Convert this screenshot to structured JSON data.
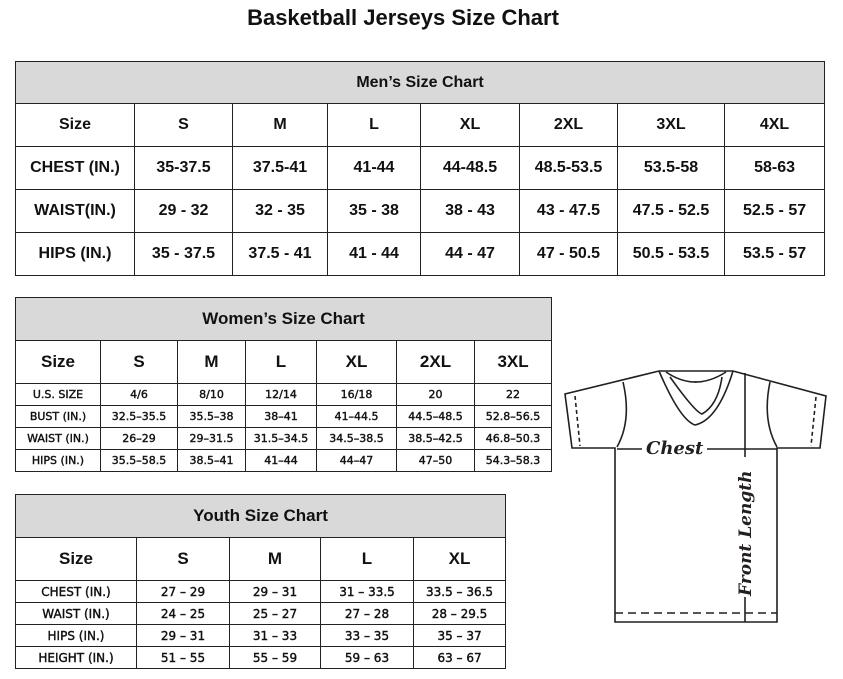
{
  "title": "Basketball Jerseys Size Chart",
  "men": {
    "title": "Men’s Size Chart",
    "header": [
      "Size",
      "S",
      "M",
      "L",
      "XL",
      "2XL",
      "3XL",
      "4XL"
    ],
    "rows": [
      [
        "CHEST (IN.)",
        "35-37.5",
        "37.5-41",
        "41-44",
        "44-48.5",
        "48.5-53.5",
        "53.5-58",
        "58-63"
      ],
      [
        "WAIST(IN.)",
        "29 - 32",
        "32 - 35",
        "35 - 38",
        "38 - 43",
        "43 - 47.5",
        "47.5 - 52.5",
        "52.5 - 57"
      ],
      [
        "HIPS (IN.)",
        "35 - 37.5",
        "37.5 - 41",
        "41 - 44",
        "44 - 47",
        "47 - 50.5",
        "50.5 - 53.5",
        "53.5 - 57"
      ]
    ]
  },
  "women": {
    "title": "Women’s Size Chart",
    "header": [
      "Size",
      "S",
      "M",
      "L",
      "XL",
      "2XL",
      "3XL"
    ],
    "rows": [
      [
        "U.S.  SIZE",
        "4/6",
        "8/10",
        "12/14",
        "16/18",
        "20",
        "22"
      ],
      [
        "BUST  (IN.)",
        "32.5–35.5",
        "35.5–38",
        "38–41",
        "41–44.5",
        "44.5–48.5",
        "52.8–56.5"
      ],
      [
        "WAIST  (IN.)",
        "26–29",
        "29–31.5",
        "31.5–34.5",
        "34.5–38.5",
        "38.5–42.5",
        "46.8–50.3"
      ],
      [
        "HIPS  (IN.)",
        "35.5–58.5",
        "38.5–41",
        "41–44",
        "44–47",
        "47–50",
        "54.3–58.3"
      ]
    ]
  },
  "youth": {
    "title": "Youth Size Chart",
    "header": [
      "Size",
      "S",
      "M",
      "L",
      "XL"
    ],
    "rows": [
      [
        "CHEST  (IN.)",
        "27  –  29",
        "29  –  31",
        "31  –  33.5",
        "33.5  –  36.5"
      ],
      [
        "WAIST  (IN.)",
        "24  –  25",
        "25  –  27",
        "27  –  28",
        "28  –  29.5"
      ],
      [
        "HIPS  (IN.)",
        "29  –  31",
        "31  –  33",
        "33  –  35",
        "35  –  37"
      ],
      [
        "HEIGHT  (IN.)",
        "51  –  55",
        "55  –  59",
        "59  –  63",
        "63  –  67"
      ]
    ]
  },
  "diagram": {
    "chest_label": "Chest",
    "length_label": "Front Length"
  }
}
